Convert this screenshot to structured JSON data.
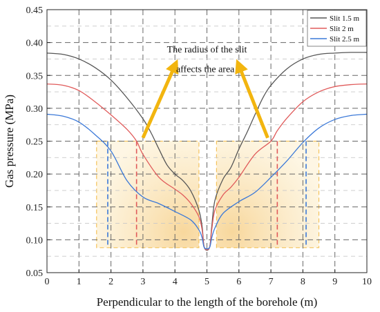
{
  "chart_data": {
    "type": "line",
    "xlabel": "Perpendicular to the length of the borehole (m)",
    "ylabel": "Gas pressure (MPa)",
    "xlim": [
      0,
      10
    ],
    "ylim": [
      0.05,
      0.45
    ],
    "x_ticks": [
      0,
      1,
      2,
      3,
      4,
      5,
      6,
      7,
      8,
      9,
      10
    ],
    "x_tick_labels": [
      "0",
      "1",
      "2",
      "3",
      "4",
      "5",
      "6",
      "7",
      "8",
      "9",
      "10"
    ],
    "y_ticks": [
      0.05,
      0.1,
      0.15,
      0.2,
      0.25,
      0.3,
      0.35,
      0.4,
      0.45
    ],
    "y_tick_labels": [
      "0.05",
      "0.10",
      "0.15",
      "0.20",
      "0.25",
      "0.30",
      "0.35",
      "0.40",
      "0.45"
    ],
    "grid": true,
    "legend_position": "top-right",
    "annotation": "The radius of the slit affects the area",
    "series": [
      {
        "name": "Slit 1.5 m",
        "color": "#555555",
        "x": [
          0,
          0.5,
          1,
          1.5,
          2,
          2.5,
          3,
          3.25,
          3.5,
          3.75,
          4,
          4.25,
          4.5,
          4.75,
          4.85,
          4.92,
          5.08,
          5.15,
          5.25,
          5.5,
          5.75,
          6,
          6.25,
          6.5,
          6.75,
          7,
          7.5,
          8,
          8.5,
          9,
          9.5,
          10
        ],
        "values": [
          0.384,
          0.382,
          0.375,
          0.362,
          0.343,
          0.316,
          0.284,
          0.263,
          0.238,
          0.214,
          0.2,
          0.19,
          0.174,
          0.145,
          0.12,
          0.088,
          0.088,
          0.12,
          0.16,
          0.192,
          0.21,
          0.238,
          0.263,
          0.29,
          0.316,
          0.335,
          0.36,
          0.375,
          0.382,
          0.384,
          0.385,
          0.385
        ]
      },
      {
        "name": "Slit 2 m",
        "color": "#e05a5a",
        "x": [
          0,
          0.5,
          1,
          1.5,
          2,
          2.5,
          2.8,
          3,
          3.5,
          4,
          4.25,
          4.5,
          4.75,
          4.85,
          4.92,
          5.08,
          5.15,
          5.25,
          5.5,
          5.75,
          6,
          6.5,
          7,
          7.2,
          7.5,
          8,
          8.5,
          9,
          9.5,
          10
        ],
        "values": [
          0.337,
          0.335,
          0.327,
          0.31,
          0.29,
          0.268,
          0.25,
          0.23,
          0.195,
          0.177,
          0.168,
          0.155,
          0.135,
          0.115,
          0.088,
          0.088,
          0.115,
          0.145,
          0.168,
          0.18,
          0.195,
          0.23,
          0.25,
          0.266,
          0.285,
          0.31,
          0.325,
          0.333,
          0.336,
          0.337
        ]
      },
      {
        "name": "Slit 2.5 m",
        "color": "#3a78d8",
        "x": [
          0,
          0.5,
          1,
          1.5,
          2,
          2.5,
          3,
          3.5,
          4,
          4.5,
          4.75,
          4.85,
          4.92,
          5.08,
          5.15,
          5.25,
          5.5,
          6,
          6.5,
          7,
          7.5,
          8,
          8.5,
          9,
          9.5,
          10
        ],
        "values": [
          0.291,
          0.288,
          0.279,
          0.26,
          0.235,
          0.19,
          0.165,
          0.155,
          0.143,
          0.13,
          0.115,
          0.103,
          0.088,
          0.088,
          0.103,
          0.118,
          0.14,
          0.158,
          0.172,
          0.195,
          0.22,
          0.248,
          0.27,
          0.283,
          0.289,
          0.291
        ]
      }
    ],
    "vertical_markers": [
      {
        "x": 1.9,
        "color": "#3a78d8",
        "y_range": [
          0.09,
          0.25
        ]
      },
      {
        "x": 2.8,
        "color": "#e05a5a",
        "y_range": [
          0.09,
          0.25
        ]
      },
      {
        "x": 7.2,
        "color": "#e05a5a",
        "y_range": [
          0.09,
          0.25
        ]
      },
      {
        "x": 8.1,
        "color": "#3a78d8",
        "y_range": [
          0.09,
          0.25
        ]
      }
    ],
    "highlight_regions": [
      {
        "x": [
          1.55,
          4.75
        ],
        "y": [
          0.088,
          0.25
        ],
        "color": "#f4c25a"
      },
      {
        "x": [
          5.3,
          8.5
        ],
        "y": [
          0.088,
          0.25
        ],
        "color": "#f4c25a"
      }
    ],
    "arrows": [
      {
        "from": [
          3.0,
          0.255
        ],
        "to": [
          4.0,
          0.365
        ],
        "color": "#f2b50f"
      },
      {
        "from": [
          6.9,
          0.255
        ],
        "to": [
          6.0,
          0.365
        ],
        "color": "#f2b50f"
      }
    ]
  }
}
